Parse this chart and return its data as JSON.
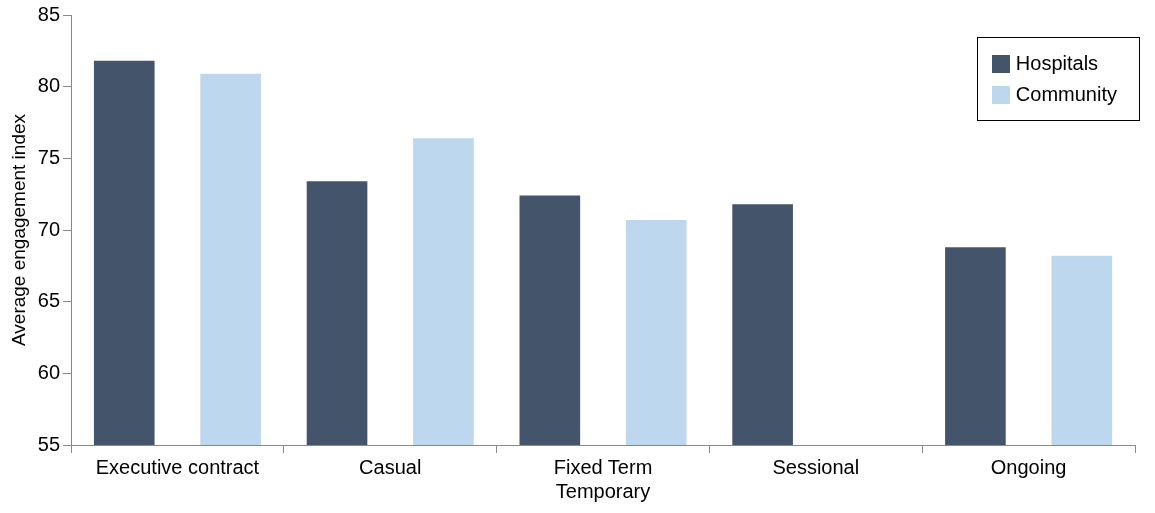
{
  "chart_data": {
    "type": "bar",
    "ylabel": "Average engagement index",
    "categories": [
      "Executive contract",
      "Casual",
      "Fixed Term\nTemporary",
      "Sessional",
      "Ongoing"
    ],
    "series": [
      {
        "name": "Hospitals",
        "color": "#44546a",
        "values": [
          81.8,
          73.4,
          72.4,
          71.8,
          68.8
        ]
      },
      {
        "name": "Community",
        "color": "#bdd7ee",
        "values": [
          80.9,
          76.4,
          70.7,
          null,
          68.2
        ]
      }
    ],
    "ylim": [
      55,
      85
    ],
    "yticks": [
      55,
      60,
      65,
      70,
      75,
      80,
      85
    ],
    "grid": false,
    "legend": "top right"
  }
}
